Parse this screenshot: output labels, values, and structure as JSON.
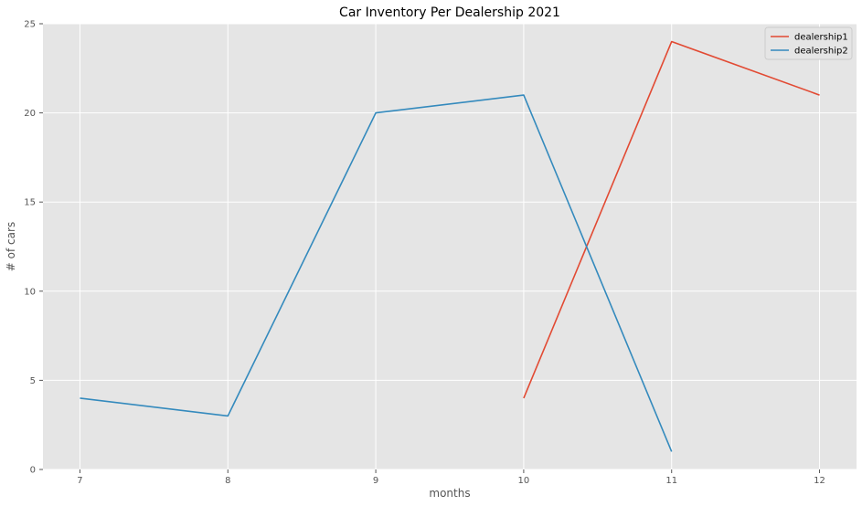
{
  "chart_data": {
    "type": "line",
    "title": "Car Inventory Per Dealership 2021",
    "xlabel": "months",
    "ylabel": "# of cars",
    "xlim": [
      6.75,
      12.25
    ],
    "ylim": [
      0,
      25
    ],
    "xticks": [
      7,
      8,
      9,
      10,
      11,
      12
    ],
    "yticks": [
      0,
      5,
      10,
      15,
      20,
      25
    ],
    "grid": true,
    "legend_position": "top-right",
    "series": [
      {
        "name": "dealership1",
        "color": "#E24A33",
        "x": [
          10,
          11,
          12
        ],
        "y": [
          4,
          24,
          21
        ]
      },
      {
        "name": "dealership2",
        "color": "#348ABD",
        "x": [
          7,
          8,
          9,
          10,
          11
        ],
        "y": [
          4,
          3,
          20,
          21,
          1
        ]
      }
    ]
  },
  "style": {
    "plot_background": "#E5E5E5",
    "grid_color": "#FFFFFF"
  }
}
